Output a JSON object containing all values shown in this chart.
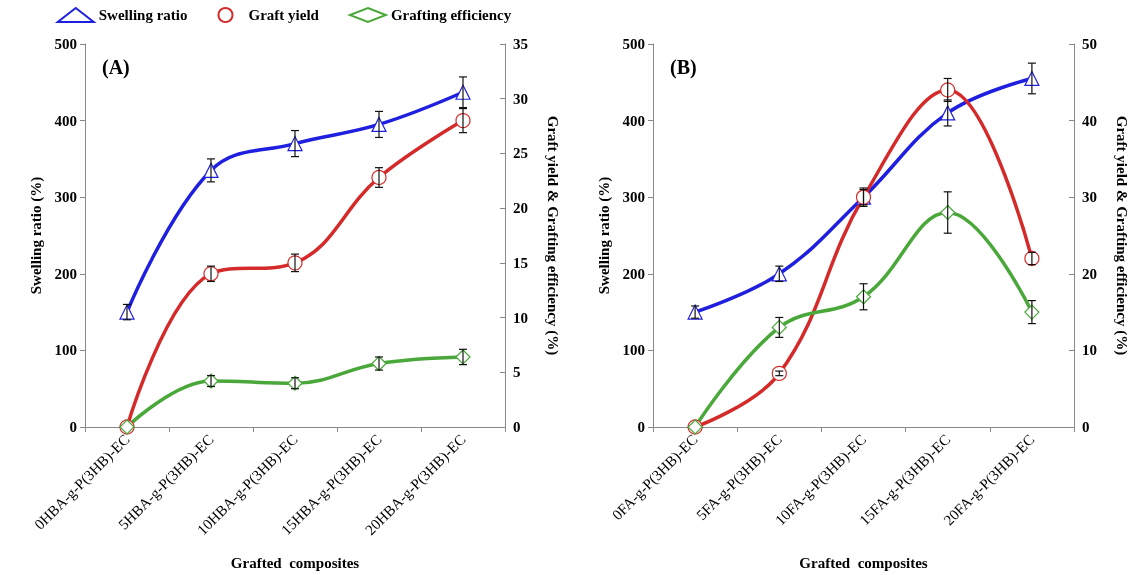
{
  "chart_data": [
    {
      "type": "line",
      "title": "(A)",
      "xlabel": "Grafted  composites",
      "ylabel": "Swelling ratio (%)",
      "y2label": "Graft yield & Grafting efficiency (%)",
      "categories": [
        "0HBA-g-P(3HB)-EC",
        "5HBA-g-P(3HB)-EC",
        "10HBA-g-P(3HB)-EC",
        "15HBA-g-P(3HB)-EC",
        "20HBA-g-P(3HB)-EC"
      ],
      "series": [
        {
          "name": "Swelling ratio",
          "color": "#1f1fe0",
          "marker": "triangle",
          "values": [
            150,
            335,
            370,
            395,
            437
          ],
          "errors": [
            10,
            15,
            17,
            17,
            20
          ]
        },
        {
          "name": "Graft yield",
          "color": "#d42a2a",
          "marker": "circle",
          "axis": "y2",
          "values": [
            0,
            14,
            15,
            22.8,
            28
          ],
          "errors": [
            0,
            0.7,
            0.8,
            0.9,
            1.1
          ]
        },
        {
          "name": "Grafting efficiency",
          "color": "#4aa83a",
          "marker": "diamond",
          "axis": "y2",
          "values": [
            0,
            4.2,
            4.0,
            5.8,
            6.4
          ],
          "errors": [
            0,
            0.5,
            0.5,
            0.6,
            0.7
          ]
        }
      ],
      "ylim": [
        0,
        500
      ],
      "yticks": [
        0,
        100,
        200,
        300,
        400,
        500
      ],
      "y2lim": [
        0,
        35
      ],
      "y2ticks": [
        0,
        5,
        10,
        15,
        20,
        25,
        30,
        35
      ],
      "grid": false,
      "legend": "top",
      "line_style": "solid"
    },
    {
      "type": "line",
      "title": "(B)",
      "xlabel": "Grafted  composites",
      "ylabel": "Swelling ratio (%)",
      "y2label": "Graft yield & Grafting efficiency (%)",
      "categories": [
        "0FA-g-P(3HB)-EC",
        "5FA-g-P(3HB)-EC",
        "10FA-g-P(3HB)-EC",
        "15FA-g-P(3HB)-EC",
        "20FA-g-P(3HB)-EC"
      ],
      "series": [
        {
          "color": "#1f1fe0",
          "marker": "triangle",
          "values": [
            150,
            200,
            300,
            410,
            455
          ],
          "errors": [
            8,
            10,
            12,
            17,
            20
          ]
        },
        {
          "color": "#d42a2a",
          "marker": "circle",
          "axis": "y2",
          "values": [
            0,
            7,
            30,
            44,
            22
          ],
          "errors": [
            0,
            0.3,
            1.0,
            1.5,
            0.8
          ]
        },
        {
          "color": "#4aa83a",
          "marker": "diamond",
          "axis": "y2",
          "values": [
            0,
            13,
            17,
            28,
            15
          ],
          "errors": [
            0,
            1.3,
            1.7,
            2.7,
            1.5
          ]
        }
      ],
      "ylim": [
        0,
        500
      ],
      "yticks": [
        0,
        100,
        200,
        300,
        400,
        500
      ],
      "y2lim": [
        0,
        50
      ],
      "y2ticks": [
        0,
        10,
        20,
        30,
        40,
        50
      ],
      "grid": false,
      "legend": false,
      "line_style": "solid"
    }
  ]
}
